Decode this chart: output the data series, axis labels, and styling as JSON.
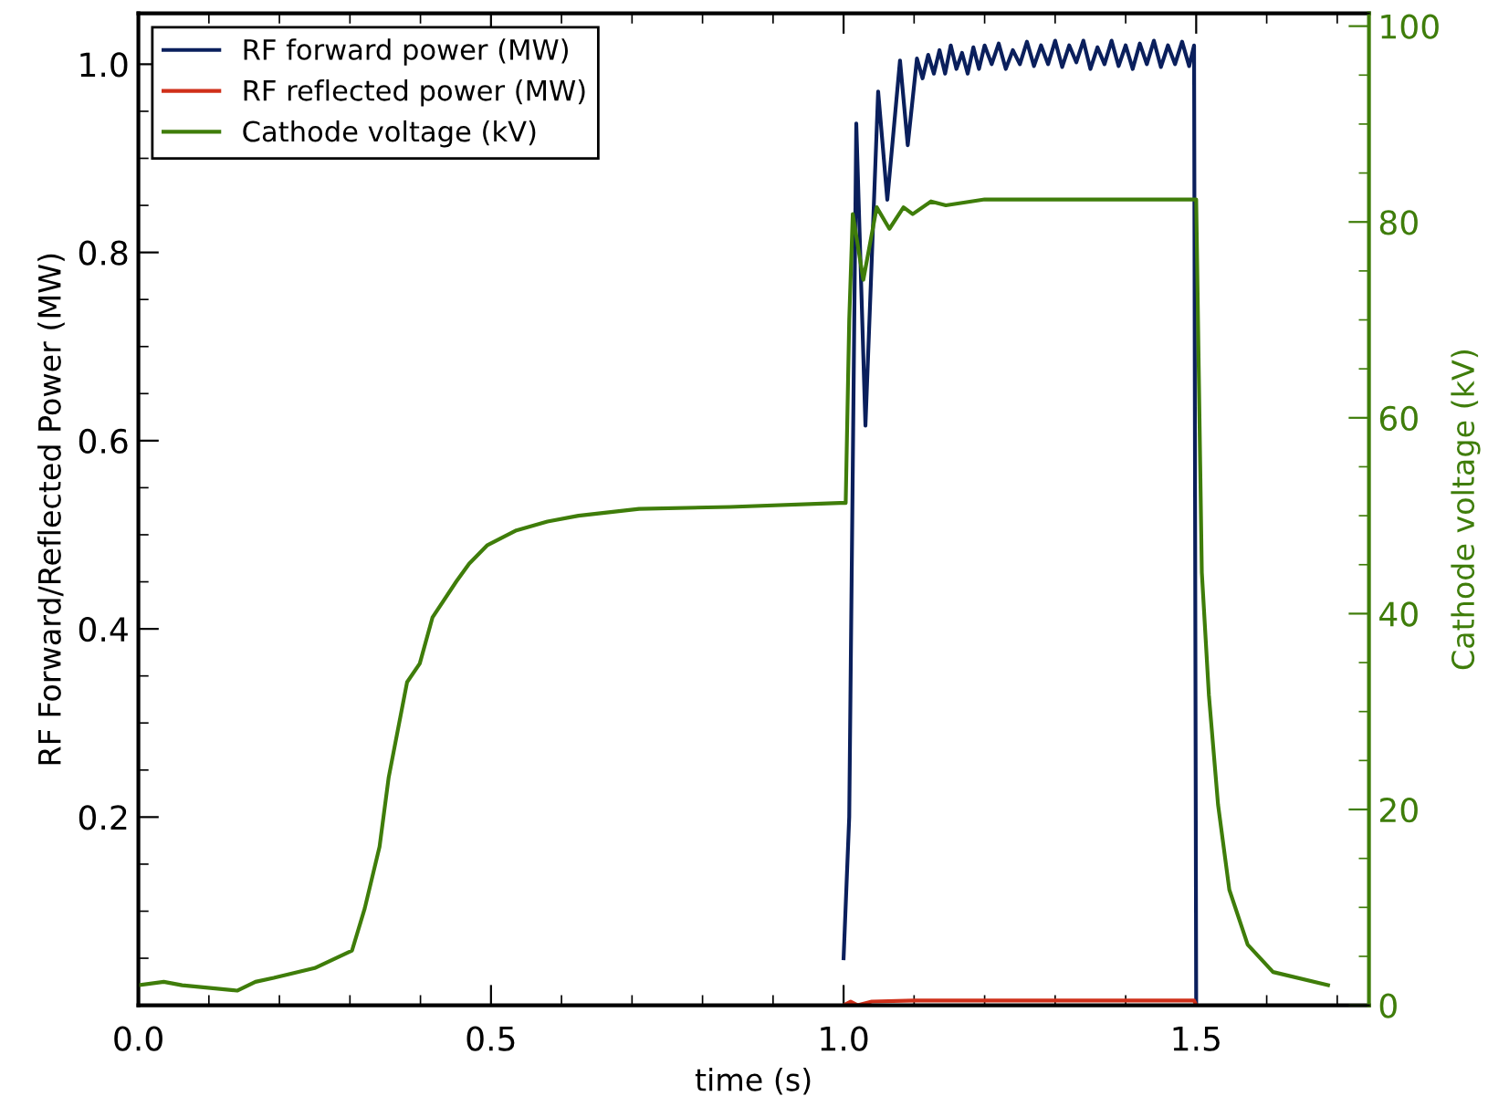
{
  "chart_data": {
    "type": "line",
    "xlabel": "time (s)",
    "ylabel": "RF Forward/Reflected Power (MW)",
    "y2label": "Cathode voltage (kV)",
    "legend": "top left",
    "grid": false,
    "xlim": [
      0,
      1.745
    ],
    "ylim": [
      0,
      1.054
    ],
    "y2lim": [
      0,
      101.3
    ],
    "xticks": [
      {
        "value": 0,
        "label": "0.0"
      },
      {
        "value": 0.1,
        "label": null
      },
      {
        "value": 0.2,
        "label": null
      },
      {
        "value": 0.3,
        "label": null
      },
      {
        "value": 0.4,
        "label": null
      },
      {
        "value": 0.5,
        "label": "0.5"
      },
      {
        "value": 0.6,
        "label": null
      },
      {
        "value": 0.7,
        "label": null
      },
      {
        "value": 0.8,
        "label": null
      },
      {
        "value": 0.9,
        "label": null
      },
      {
        "value": 1.0,
        "label": "1.0"
      },
      {
        "value": 1.1,
        "label": null
      },
      {
        "value": 1.2,
        "label": null
      },
      {
        "value": 1.3,
        "label": null
      },
      {
        "value": 1.4,
        "label": null
      },
      {
        "value": 1.5,
        "label": "1.5"
      },
      {
        "value": 1.6,
        "label": null
      },
      {
        "value": 1.7,
        "label": null
      }
    ],
    "yticks": [
      {
        "value": 0.05,
        "label": null
      },
      {
        "value": 0.1,
        "label": null
      },
      {
        "value": 0.15,
        "label": null
      },
      {
        "value": 0.2,
        "label": "0.2"
      },
      {
        "value": 0.25,
        "label": null
      },
      {
        "value": 0.3,
        "label": null
      },
      {
        "value": 0.35,
        "label": null
      },
      {
        "value": 0.4,
        "label": "0.4"
      },
      {
        "value": 0.45,
        "label": null
      },
      {
        "value": 0.5,
        "label": null
      },
      {
        "value": 0.55,
        "label": null
      },
      {
        "value": 0.6,
        "label": "0.6"
      },
      {
        "value": 0.65,
        "label": null
      },
      {
        "value": 0.7,
        "label": null
      },
      {
        "value": 0.75,
        "label": null
      },
      {
        "value": 0.8,
        "label": "0.8"
      },
      {
        "value": 0.85,
        "label": null
      },
      {
        "value": 0.9,
        "label": null
      },
      {
        "value": 0.95,
        "label": null
      },
      {
        "value": 1.0,
        "label": "1.0"
      }
    ],
    "y2ticks": [
      0,
      {
        "value": 5,
        "label": null
      },
      {
        "value": 10,
        "label": null
      },
      {
        "value": 15,
        "label": null
      },
      20,
      {
        "value": 25,
        "label": null
      },
      {
        "value": 30,
        "label": null
      },
      {
        "value": 35,
        "label": null
      },
      40,
      {
        "value": 45,
        "label": null
      },
      {
        "value": 50,
        "label": null
      },
      {
        "value": 55,
        "label": null
      },
      60,
      {
        "value": 65,
        "label": null
      },
      {
        "value": 70,
        "label": null
      },
      {
        "value": 75,
        "label": null
      },
      80,
      {
        "value": 85,
        "label": null
      },
      {
        "value": 90,
        "label": null
      },
      {
        "value": 95,
        "label": null
      },
      100
    ],
    "series": [
      {
        "name": "RF forward power (MW)",
        "color": "#0a1f5c",
        "x": [
          1.0,
          1.008,
          1.018,
          1.031,
          1.049,
          1.062,
          1.08,
          1.091,
          1.104,
          1.112,
          1.12,
          1.128,
          1.136,
          1.144,
          1.152,
          1.16,
          1.168,
          1.176,
          1.184,
          1.192,
          1.2,
          1.21,
          1.22,
          1.23,
          1.24,
          1.25,
          1.26,
          1.27,
          1.28,
          1.29,
          1.3,
          1.31,
          1.32,
          1.33,
          1.34,
          1.35,
          1.36,
          1.37,
          1.38,
          1.39,
          1.4,
          1.41,
          1.42,
          1.43,
          1.44,
          1.45,
          1.46,
          1.47,
          1.48,
          1.49,
          1.497,
          1.5
        ],
        "values": [
          0.05,
          0.2,
          0.937,
          0.616,
          0.971,
          0.856,
          1.004,
          0.914,
          1.006,
          0.985,
          1.01,
          0.99,
          1.015,
          0.99,
          1.02,
          0.995,
          1.012,
          0.99,
          1.018,
          0.995,
          1.02,
          1.0,
          1.022,
          0.995,
          1.015,
          1.0,
          1.024,
          0.998,
          1.02,
          1.0,
          1.025,
          0.997,
          1.02,
          1.002,
          1.025,
          0.995,
          1.018,
          1.0,
          1.025,
          0.998,
          1.02,
          0.995,
          1.022,
          1.0,
          1.025,
          0.997,
          1.02,
          1.0,
          1.024,
          0.998,
          1.02,
          0.0
        ]
      },
      {
        "name": "RF reflected power (MW)",
        "color": "#d0301a",
        "x": [
          1.0,
          1.01,
          1.02,
          1.04,
          1.1,
          1.2,
          1.3,
          1.4,
          1.497,
          1.5
        ],
        "values": [
          0.0,
          0.004,
          0.0,
          0.004,
          0.005,
          0.005,
          0.005,
          0.005,
          0.005,
          0.0
        ]
      },
      {
        "name": "Cathode voltage (kV)",
        "color": "#3f7d0a",
        "axis": "y2",
        "x": [
          0,
          0.036,
          0.062,
          0.14,
          0.166,
          0.192,
          0.25,
          0.303,
          0.321,
          0.342,
          0.355,
          0.381,
          0.399,
          0.417,
          0.451,
          0.469,
          0.495,
          0.536,
          0.58,
          0.624,
          0.71,
          0.839,
          0.995,
          1.003,
          1.008,
          1.013,
          1.028,
          1.047,
          1.065,
          1.085,
          1.098,
          1.124,
          1.145,
          1.2,
          1.3,
          1.4,
          1.5,
          1.508,
          1.518,
          1.531,
          1.547,
          1.573,
          1.609,
          1.687
        ],
        "values": [
          2.05,
          2.4,
          2.05,
          1.5,
          2.4,
          2.8,
          3.8,
          5.6,
          9.9,
          16.2,
          23.3,
          33,
          34.9,
          39.6,
          43.3,
          45.1,
          47,
          48.5,
          49.4,
          50,
          50.7,
          50.9,
          51.3,
          51.3,
          70,
          80.8,
          74.1,
          81.5,
          79.3,
          81.5,
          80.8,
          82.1,
          81.7,
          82.3,
          82.3,
          82.3,
          82.3,
          44.2,
          31.7,
          20.5,
          11.8,
          6.2,
          3.4,
          2.05
        ]
      }
    ]
  }
}
